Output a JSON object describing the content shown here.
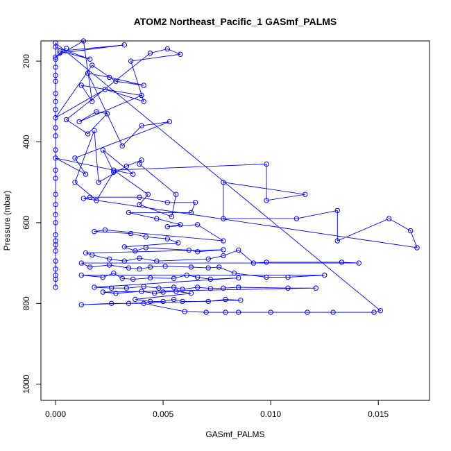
{
  "chart_data": {
    "type": "line",
    "title": "ATOM2 Northeast_Pacific_1 GASmf_PALMS",
    "xlabel": "GASmf_PALMS",
    "ylabel": "Pressure (mbar)",
    "xlim": [
      -0.00068,
      0.01738
    ],
    "ylim": [
      1040,
      150
    ],
    "y_reversed": true,
    "grid": false,
    "x_ticks": [
      0.0,
      0.005,
      0.01,
      0.015
    ],
    "x_tick_labels": [
      "0.000",
      "0.005",
      "0.010",
      "0.015"
    ],
    "y_ticks": [
      200,
      400,
      600,
      800,
      1000
    ],
    "y_tick_labels": [
      "200",
      "400",
      "600",
      "800",
      "1000"
    ],
    "series": [
      {
        "marker": "open-circle",
        "color": "#0000ff",
        "points": [
          [
            0.0,
            165
          ],
          [
            0.0016,
            195
          ],
          [
            0.0002,
            175
          ],
          [
            0.0032,
            160
          ],
          [
            0.0002,
            180
          ],
          [
            0.0005,
            168
          ],
          [
            0.0,
            190
          ],
          [
            0.0013,
            150
          ],
          [
            0.0017,
            300
          ],
          [
            0.0012,
            260
          ],
          [
            0.004,
            285
          ],
          [
            0.0011,
            350
          ],
          [
            0.0019,
            325
          ],
          [
            0.0024,
            330
          ],
          [
            0.0015,
            380
          ],
          [
            0.0005,
            345
          ],
          [
            0.0044,
            180
          ],
          [
            0.0052,
            170
          ],
          [
            0.0058,
            183
          ],
          [
            0.0035,
            200
          ],
          [
            0.0041,
            300
          ],
          [
            0.0023,
            270
          ],
          [
            0.0,
            340
          ],
          [
            0.0017,
            210
          ],
          [
            0.0028,
            250
          ],
          [
            0.0041,
            260
          ],
          [
            0.0025,
            240
          ],
          [
            0.0015,
            230
          ],
          [
            0.0031,
            410
          ],
          [
            0.004,
            360
          ],
          [
            0.0053,
            350
          ],
          [
            0.0009,
            440
          ],
          [
            0.0014,
            480
          ],
          [
            0.0,
            440
          ],
          [
            0.0036,
            480
          ],
          [
            0.0022,
            420
          ],
          [
            0.0027,
            475
          ],
          [
            0.0019,
            545
          ],
          [
            0.0009,
            500
          ],
          [
            0.0018,
            372
          ],
          [
            0.002,
            500
          ],
          [
            0.0033,
            460
          ],
          [
            0.004,
            445
          ],
          [
            0.0039,
            455
          ],
          [
            0.0056,
            530
          ],
          [
            0.0054,
            585
          ],
          [
            0.0039,
            555
          ],
          [
            0.0043,
            530
          ],
          [
            0.0027,
            470
          ],
          [
            0.0098,
            455
          ],
          [
            0.0098,
            545
          ],
          [
            0.0116,
            530
          ],
          [
            0.0078,
            500
          ],
          [
            0.0078,
            590
          ],
          [
            0.0112,
            590
          ],
          [
            0.0131,
            570
          ],
          [
            0.0131,
            645
          ],
          [
            0.0155,
            590
          ],
          [
            0.0165,
            620
          ],
          [
            0.0168,
            662
          ],
          [
            0.0013,
            540
          ],
          [
            0.0016,
            537
          ],
          [
            0.0039,
            537
          ],
          [
            0.0052,
            550
          ],
          [
            0.0065,
            550
          ],
          [
            0.0063,
            575
          ],
          [
            0.0034,
            575
          ],
          [
            0.0047,
            590
          ],
          [
            0.0058,
            605
          ],
          [
            0.0052,
            610
          ],
          [
            0.0066,
            605
          ],
          [
            0.0078,
            645
          ],
          [
            0.0023,
            618
          ],
          [
            0.0018,
            622
          ],
          [
            0.0035,
            627
          ],
          [
            0.0042,
            635
          ],
          [
            0.0052,
            640
          ],
          [
            0.0057,
            650
          ],
          [
            0.0032,
            660
          ],
          [
            0.0037,
            670
          ],
          [
            0.0042,
            662
          ],
          [
            0.0062,
            668
          ],
          [
            0.0066,
            672
          ],
          [
            0.0078,
            667
          ],
          [
            0.0014,
            675
          ],
          [
            0.0017,
            680
          ],
          [
            0.0025,
            690
          ],
          [
            0.0032,
            695
          ],
          [
            0.0039,
            688
          ],
          [
            0.0047,
            695
          ],
          [
            0.0071,
            690
          ],
          [
            0.0078,
            682
          ],
          [
            0.0085,
            668
          ],
          [
            0.0092,
            700
          ],
          [
            0.0098,
            698
          ],
          [
            0.0133,
            698
          ],
          [
            0.0141,
            700
          ],
          [
            0.0012,
            700
          ],
          [
            0.0016,
            710
          ],
          [
            0.0025,
            705
          ],
          [
            0.0034,
            712
          ],
          [
            0.0039,
            715
          ],
          [
            0.0044,
            710
          ],
          [
            0.0051,
            708
          ],
          [
            0.0063,
            710
          ],
          [
            0.0071,
            712
          ],
          [
            0.0076,
            710
          ],
          [
            0.0083,
            725
          ],
          [
            0.0098,
            735
          ],
          [
            0.0108,
            735
          ],
          [
            0.0125,
            730
          ],
          [
            0.0012,
            730
          ],
          [
            0.0022,
            735
          ],
          [
            0.0027,
            725
          ],
          [
            0.0031,
            738
          ],
          [
            0.0036,
            740
          ],
          [
            0.0044,
            737
          ],
          [
            0.0055,
            738
          ],
          [
            0.0061,
            730
          ],
          [
            0.0066,
            735
          ],
          [
            0.0072,
            740
          ],
          [
            0.0085,
            737
          ],
          [
            0.0018,
            760
          ],
          [
            0.0026,
            762
          ],
          [
            0.0033,
            762
          ],
          [
            0.0041,
            758
          ],
          [
            0.0048,
            762
          ],
          [
            0.0055,
            760
          ],
          [
            0.0059,
            765
          ],
          [
            0.0066,
            760
          ],
          [
            0.0072,
            763
          ],
          [
            0.0078,
            762
          ],
          [
            0.0085,
            760
          ],
          [
            0.0108,
            762
          ],
          [
            0.0121,
            762
          ],
          [
            0.0022,
            772
          ],
          [
            0.0028,
            775
          ],
          [
            0.004,
            770
          ],
          [
            0.0046,
            775
          ],
          [
            0.005,
            772
          ],
          [
            0.0056,
            770
          ],
          [
            0.0063,
            775
          ],
          [
            0.0037,
            790
          ],
          [
            0.0044,
            795
          ],
          [
            0.005,
            795
          ],
          [
            0.0055,
            790
          ],
          [
            0.0059,
            795
          ],
          [
            0.0071,
            795
          ],
          [
            0.0079,
            790
          ],
          [
            0.0086,
            792
          ],
          [
            0.0012,
            803
          ],
          [
            0.0026,
            800
          ],
          [
            0.0034,
            800
          ],
          [
            0.0041,
            800
          ],
          [
            0.006,
            820
          ],
          [
            0.007,
            822
          ],
          [
            0.0079,
            822
          ],
          [
            0.0085,
            822
          ],
          [
            0.01,
            822
          ],
          [
            0.0117,
            822
          ],
          [
            0.0129,
            822
          ],
          [
            0.0148,
            822
          ],
          [
            0.0151,
            818
          ],
          [
            0.0,
            155
          ],
          [
            0.0,
            195
          ],
          [
            0.0,
            215
          ],
          [
            0.0,
            235
          ],
          [
            0.0,
            250
          ],
          [
            0.0,
            280
          ],
          [
            0.0,
            300
          ],
          [
            0.0,
            320
          ],
          [
            0.0,
            365
          ],
          [
            0.0,
            385
          ],
          [
            0.0,
            420
          ],
          [
            0.0,
            470
          ],
          [
            0.0,
            490
          ],
          [
            0.0,
            530
          ],
          [
            0.0,
            555
          ],
          [
            0.0,
            580
          ],
          [
            0.0,
            600
          ],
          [
            0.0,
            630
          ],
          [
            0.0,
            645
          ],
          [
            0.0,
            655
          ],
          [
            0.0,
            670
          ],
          [
            0.0,
            695
          ],
          [
            0.0,
            715
          ],
          [
            0.0,
            730
          ],
          [
            0.0,
            740
          ],
          [
            0.0,
            760
          ]
        ]
      }
    ]
  }
}
